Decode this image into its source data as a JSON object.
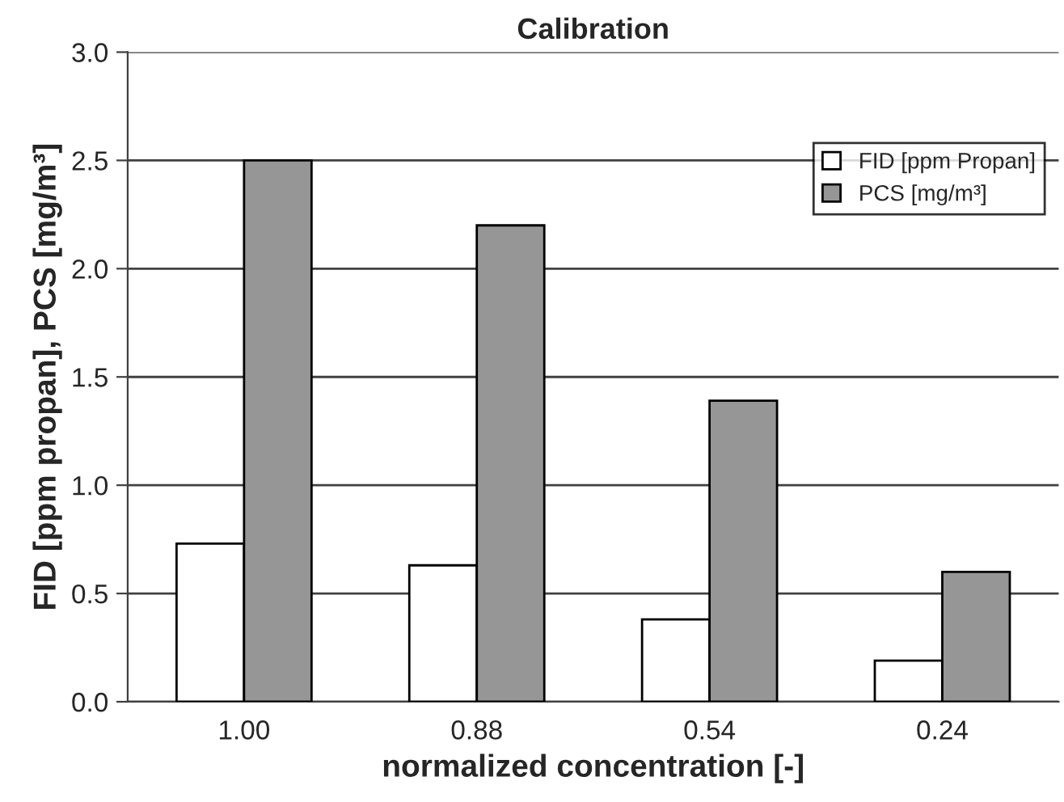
{
  "chart_data": {
    "type": "bar",
    "title": "Calibration",
    "xlabel": "normalized concentration [-]",
    "ylabel": "FID [ppm propan], PCS [mg/m³]",
    "categories": [
      "1.00",
      "0.88",
      "0.54",
      "0.24"
    ],
    "series": [
      {
        "name": "FID [ppm Propan]",
        "color": "#ffffff",
        "values": [
          0.73,
          0.63,
          0.38,
          0.19
        ]
      },
      {
        "name": "PCS [mg/m³]",
        "color": "#969696",
        "values": [
          2.5,
          2.2,
          1.39,
          0.6
        ]
      }
    ],
    "ylim": [
      0,
      3.0
    ],
    "yticks": [
      {
        "value": 0,
        "label": "0.0"
      },
      {
        "value": 0.5,
        "label": "0.5"
      },
      {
        "value": 1.0,
        "label": "1.0"
      },
      {
        "value": 1.5,
        "label": "1.5"
      },
      {
        "value": 2.0,
        "label": "2.0"
      },
      {
        "value": 2.5,
        "label": "2.5"
      },
      {
        "value": 3.0,
        "label": "3.0"
      }
    ],
    "grid": "y",
    "legend": "top right"
  }
}
